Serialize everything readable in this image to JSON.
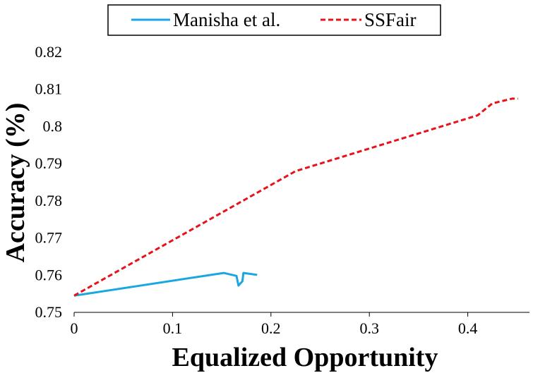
{
  "chart_data": {
    "type": "line",
    "title": "",
    "xlabel": "Equalized Opportunity",
    "ylabel": "Accuracy (%)",
    "xlim": [
      0,
      0.5
    ],
    "ylim": [
      0.75,
      0.82
    ],
    "x_ticks": [
      0,
      0.1,
      0.2,
      0.3,
      0.4
    ],
    "x_tick_labels": [
      "0",
      "0.1",
      "0.2",
      "0.3",
      "0.4"
    ],
    "y_ticks": [
      0.75,
      0.76,
      0.77,
      0.78,
      0.79,
      0.8,
      0.81,
      0.82
    ],
    "y_tick_labels": [
      "0.75",
      "0.76",
      "0.77",
      "0.78",
      "0.79",
      "0.8",
      "0.81",
      "0.82"
    ],
    "grid": false,
    "legend_position": "top",
    "series": [
      {
        "name": "Manisha et al.",
        "color": "#1aa7e0",
        "style": "solid",
        "x": [
          0.0,
          0.152,
          0.165,
          0.167,
          0.171,
          0.172,
          0.186
        ],
        "y": [
          0.7545,
          0.7606,
          0.7598,
          0.7572,
          0.7584,
          0.7606,
          0.7601
        ]
      },
      {
        "name": "SSFair",
        "color": "#e8121a",
        "style": "dashed",
        "x": [
          0.0,
          0.225,
          0.41,
          0.425,
          0.445,
          0.451
        ],
        "y": [
          0.7545,
          0.788,
          0.803,
          0.8062,
          0.8075,
          0.8075
        ]
      }
    ]
  }
}
